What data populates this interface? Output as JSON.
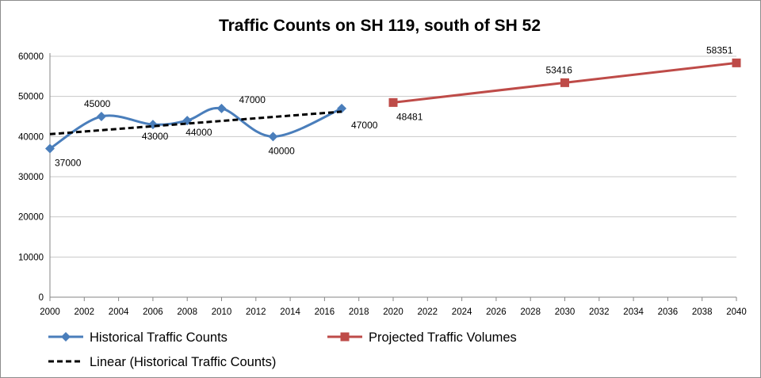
{
  "chart_data": {
    "type": "line",
    "title": "Traffic Counts on SH 119, south of SH 52",
    "xlim": [
      2000,
      2040
    ],
    "ylim": [
      0,
      60000
    ],
    "x_ticks": [
      "2000",
      "2002",
      "2004",
      "2006",
      "2008",
      "2010",
      "2012",
      "2014",
      "2016",
      "2018",
      "2020",
      "2022",
      "2024",
      "2026",
      "2028",
      "2030",
      "2032",
      "2034",
      "2036",
      "2038",
      "2040"
    ],
    "y_ticks": [
      "0",
      "10000",
      "20000",
      "30000",
      "40000",
      "50000",
      "60000"
    ],
    "grid": "horizontal",
    "legend_position": "bottom",
    "series": [
      {
        "name": "Historical Traffic Counts",
        "color": "#4a7ebb",
        "marker": "diamond",
        "smooth": true,
        "x": [
          2000,
          2003,
          2006,
          2008,
          2010,
          2013,
          2017
        ],
        "y": [
          37000,
          45000,
          43000,
          44000,
          47000,
          40000,
          47000
        ],
        "labels": [
          "37000",
          "45000",
          "43000",
          "44000",
          "47000",
          "40000",
          "47000"
        ]
      },
      {
        "name": "Projected Traffic Volumes",
        "color": "#be4b48",
        "marker": "square",
        "smooth": false,
        "x": [
          2020,
          2030,
          2040
        ],
        "y": [
          48481,
          53416,
          58351
        ],
        "labels": [
          "48481",
          "53416",
          "58351"
        ]
      },
      {
        "name": "Linear (Historical Traffic Counts)",
        "color": "#000000",
        "marker": "none",
        "dashed": true,
        "x": [
          2000,
          2017
        ],
        "y": [
          40600,
          46200
        ]
      }
    ]
  }
}
